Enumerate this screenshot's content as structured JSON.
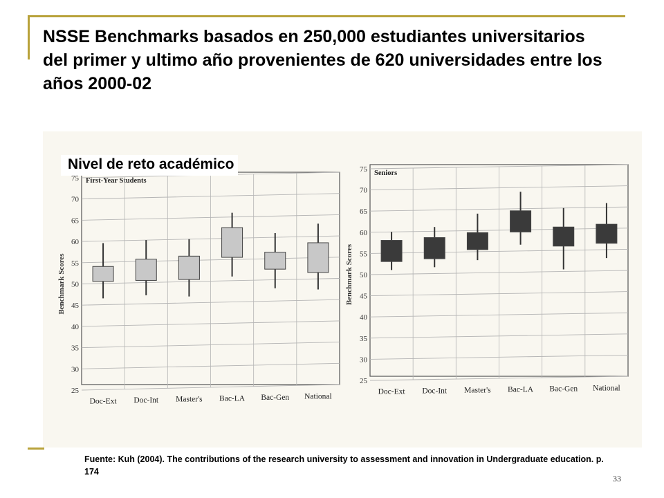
{
  "slide": {
    "title": "NSSE Benchmarks basados en 250,000 estudiantes universitarios del primer y ultimo año provenientes de 620 universidades entre los años 2000-02",
    "overlay_label": "Nivel de reto académico",
    "source": "Fuente: Kuh (2004). The contributions of the research university to assessment and innovation in Undergraduate education. p. 174",
    "page_number": "33"
  },
  "colors": {
    "accent": "#b8a23a",
    "first_year_box": "#c8c8c8",
    "seniors_box": "#3a3a3a",
    "grid": "#b5b5b5"
  },
  "chart_data": [
    {
      "type": "box",
      "title": "First-Year Students",
      "ylabel": "Benchmark Scores",
      "ylim": [
        25,
        75
      ],
      "yticks": [
        25,
        30,
        35,
        40,
        45,
        50,
        55,
        60,
        65,
        70,
        75
      ],
      "grid": true,
      "categories": [
        "Doc-Ext",
        "Doc-Int",
        "Master's",
        "Bac-LA",
        "Bac-Gen",
        "National"
      ],
      "series": [
        {
          "whisker_low": [
            46.5,
            47,
            46.5,
            51,
            48,
            47.5
          ],
          "box_low": [
            50.5,
            50.5,
            50.5,
            55.5,
            52.5,
            51.5
          ],
          "box_high": [
            54,
            55.5,
            56,
            62.5,
            56.5,
            58.5
          ],
          "whisker_high": [
            59.5,
            60,
            60,
            66,
            61,
            63
          ]
        }
      ]
    },
    {
      "type": "box",
      "title": "Seniors",
      "ylabel": "Benchmark Scores",
      "ylim": [
        25,
        75
      ],
      "yticks": [
        25,
        30,
        35,
        40,
        45,
        50,
        55,
        60,
        65,
        70,
        75
      ],
      "grid": true,
      "categories": [
        "Doc-Ext",
        "Doc-Int",
        "Master's",
        "Bac-LA",
        "Bac-Gen",
        "National"
      ],
      "series": [
        {
          "whisker_low": [
            51,
            51.5,
            53,
            56.5,
            50.5,
            53
          ],
          "box_low": [
            53,
            53.5,
            55.5,
            59.5,
            56,
            56.5
          ],
          "box_high": [
            58,
            58.5,
            59.5,
            64.5,
            60.5,
            61
          ],
          "whisker_high": [
            60,
            61,
            64,
            69,
            65,
            66
          ]
        }
      ]
    }
  ]
}
